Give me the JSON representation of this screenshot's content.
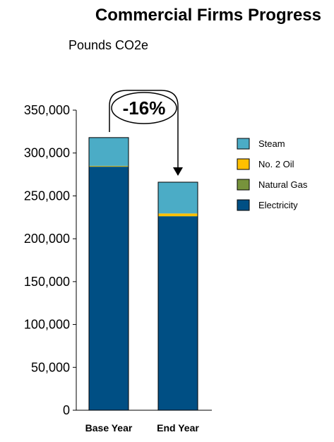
{
  "title": "Commercial Firms Progress",
  "subtitle": "Pounds CO2e",
  "annotation": "-16%",
  "chart_data": {
    "type": "bar",
    "stacked": true,
    "title": "Commercial Firms Progress",
    "subtitle": "Pounds CO2e",
    "categories": [
      "Base Year",
      "End Year"
    ],
    "ylim": [
      0,
      350000
    ],
    "yticks": [
      0,
      50000,
      100000,
      150000,
      200000,
      250000,
      300000,
      350000
    ],
    "ytick_labels": [
      "0",
      "50,000",
      "100,000",
      "150,000",
      "200,000",
      "250,000",
      "300,000",
      "350,000"
    ],
    "series": [
      {
        "name": "Electricity",
        "color": "#004F84",
        "values": [
          284000,
          226000
        ]
      },
      {
        "name": "Natural Gas",
        "color": "#77933C",
        "values": [
          500,
          500
        ]
      },
      {
        "name": "No. 2 Oil",
        "color": "#FFC000",
        "values": [
          500,
          3000
        ]
      },
      {
        "name": "Steam",
        "color": "#4BACC6",
        "values": [
          33000,
          36500
        ]
      }
    ],
    "legend": [
      "Steam",
      "No. 2 Oil",
      "Natural Gas",
      "Electricity"
    ],
    "legend_position": "right",
    "grid": false
  }
}
